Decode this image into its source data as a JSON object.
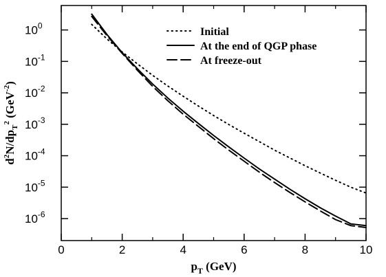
{
  "chart_data": {
    "type": "line",
    "title": "",
    "xlabel": "p",
    "xlabel_sub": "T",
    "xlabel_unit": " (GeV)",
    "ylabel_parts": [
      "d",
      "2",
      "N/dp",
      "T",
      "2",
      " (GeV",
      "-2",
      ")"
    ],
    "xlim": [
      0,
      10
    ],
    "ylim": [
      2e-07,
      6
    ],
    "yscale": "log",
    "x_ticks": [
      0,
      2,
      4,
      6,
      8,
      10
    ],
    "x_tick_labels": [
      "0",
      "2",
      "4",
      "6",
      "8",
      "10"
    ],
    "y_ticks": [
      1,
      0.1,
      0.01,
      0.001,
      0.0001,
      1e-05,
      1e-06
    ],
    "y_tick_base": "10",
    "y_tick_exponents": [
      "0",
      "-1",
      "-2",
      "-3",
      "-4",
      "-5",
      "-6"
    ],
    "grid": false,
    "legend_position": "top-right",
    "series": [
      {
        "name": "Initial",
        "style": "dotted",
        "x": [
          1,
          1.5,
          2,
          2.5,
          3,
          3.5,
          4,
          4.5,
          5,
          5.5,
          6,
          6.5,
          7,
          7.5,
          8,
          8.5,
          9,
          9.5,
          10
        ],
        "y": [
          1.5,
          0.52,
          0.2,
          0.083,
          0.036,
          0.0164,
          0.0078,
          0.0038,
          0.0019,
          0.00098,
          0.00052,
          0.00028,
          0.00015,
          8.5e-05,
          4.8e-05,
          2.8e-05,
          1.65e-05,
          1e-05,
          6.5e-06
        ]
      },
      {
        "name": "At the end of QGP phase",
        "style": "solid",
        "x": [
          1,
          1.5,
          2,
          2.5,
          3,
          3.5,
          4,
          4.5,
          5,
          5.5,
          6,
          6.5,
          7,
          7.5,
          8,
          8.5,
          9,
          9.5,
          10
        ],
        "y": [
          3.2,
          0.72,
          0.19,
          0.058,
          0.019,
          0.0068,
          0.0026,
          0.00106,
          0.00044,
          0.00019,
          8.4e-05,
          3.8e-05,
          1.8e-05,
          8.6e-06,
          4.3e-06,
          2.2e-06,
          1.2e-06,
          6.8e-07,
          6e-07
        ]
      },
      {
        "name": "At freeze-out",
        "style": "dashed",
        "x": [
          1,
          1.5,
          2,
          2.5,
          3,
          3.5,
          4,
          4.5,
          5,
          5.5,
          6,
          6.5,
          7,
          7.5,
          8,
          8.5,
          9,
          9.5,
          10
        ],
        "y": [
          2.7,
          0.66,
          0.18,
          0.052,
          0.016,
          0.0056,
          0.0021,
          0.00085,
          0.00035,
          0.00015,
          6.7e-05,
          3e-05,
          1.4e-05,
          6.8e-06,
          3.4e-06,
          1.75e-06,
          9.3e-07,
          6e-07,
          5.2e-07
        ]
      }
    ]
  }
}
